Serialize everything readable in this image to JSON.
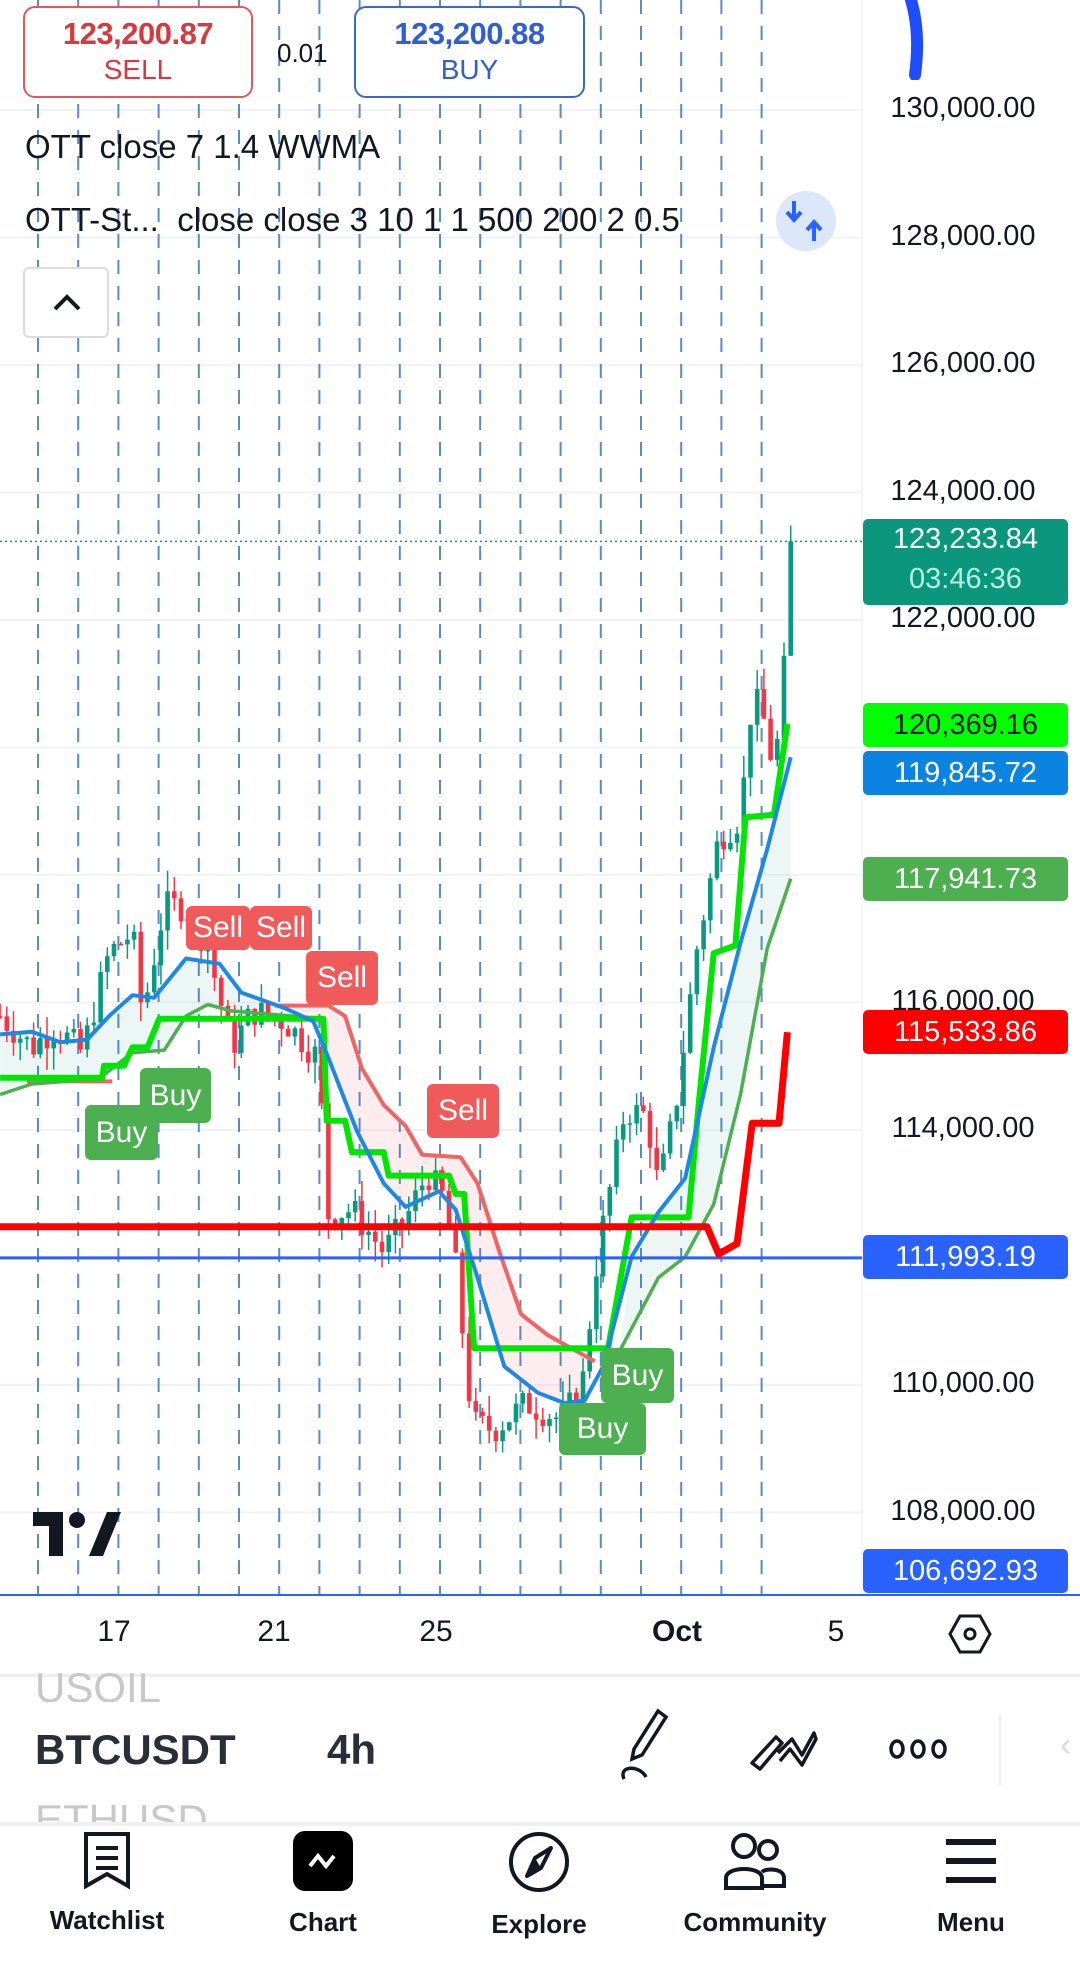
{
  "trade": {
    "sell_price": "123,200.87",
    "sell_label": "SELL",
    "spread": "0.01",
    "buy_price": "123,200.88",
    "buy_label": "BUY"
  },
  "legend": {
    "line1": "OTT close 7 1.4 WWMA",
    "line2_name": "OTT-St...",
    "line2_params": "close close 3 10 1 1 500 200 2 0.5"
  },
  "icons": {
    "collapse": "chevron-up-icon",
    "compare": "swap-arrows-icon",
    "settings": "hexagon-settings-icon"
  },
  "price_axis": [
    "130,000.00",
    "128,000.00",
    "126,000.00",
    "124,000.00",
    "122,000.00",
    "116,000.00",
    "114,000.00",
    "110,000.00",
    "108,000.00"
  ],
  "price_tags": [
    {
      "value": "123,233.84",
      "sub": "03:46:36",
      "bg": "#0a977d",
      "fg": "#ffffff"
    },
    {
      "value": "120,369.16",
      "bg": "#00ff00",
      "fg": "#131722"
    },
    {
      "value": "119,845.72",
      "bg": "#0a84e0",
      "fg": "#ffffff"
    },
    {
      "value": "117,941.73",
      "bg": "#4caf50",
      "fg": "#ffffff"
    },
    {
      "value": "115,533.86",
      "bg": "#ff0000",
      "fg": "#ffffff"
    },
    {
      "value": "111,993.19",
      "bg": "#2962ff",
      "fg": "#ffffff"
    },
    {
      "value": "106,692.93",
      "bg": "#2962ff",
      "fg": "#ffffff"
    }
  ],
  "date_axis": [
    "17",
    "21",
    "25",
    "Oct",
    "5"
  ],
  "signals": {
    "sell": "Sell",
    "buy": "Buy"
  },
  "toolbar": {
    "prev_symbol": "USOIL",
    "symbol": "BTCUSDT",
    "interval": "4h",
    "next_symbol": "ETHUSD"
  },
  "nav": [
    {
      "label": "Watchlist"
    },
    {
      "label": "Chart"
    },
    {
      "label": "Explore"
    },
    {
      "label": "Community"
    },
    {
      "label": "Menu"
    }
  ],
  "colors": {
    "up": "#089981",
    "down": "#f23645",
    "ott": "#00e600",
    "support": "#1e88e5",
    "ott_lower": "#4caf50",
    "trail": "#f06464",
    "stop": "#ff0000",
    "last_price_line": "#2962ff"
  },
  "chart_data": {
    "type": "candlestick",
    "ylim": [
      106000,
      131500
    ],
    "close_path": [
      [
        "09-14 04",
        115787
      ],
      [
        "09-14 23",
        115295
      ],
      [
        "09-15 13",
        115623
      ],
      [
        "09-16 05",
        115213
      ],
      [
        "09-16 21",
        116772
      ],
      [
        "09-17 11",
        117100
      ],
      [
        "09-17 17",
        115787
      ],
      [
        "09-18 06",
        117510
      ],
      [
        "09-18 19",
        117510
      ],
      [
        "09-19 08",
        116854
      ],
      [
        "09-19 22",
        115295
      ],
      [
        "09-20 11",
        115869
      ],
      [
        "09-21 06",
        115705
      ],
      [
        "09-22 02",
        115131
      ],
      [
        "09-22 08",
        112670
      ],
      [
        "09-22 22",
        112752
      ],
      [
        "09-23 17",
        112095
      ],
      [
        "09-24 06",
        112588
      ],
      [
        "09-24 19",
        113326
      ],
      [
        "09-25 05",
        112916
      ],
      [
        "09-25 12",
        111849
      ],
      [
        "09-25 22",
        109388
      ],
      [
        "09-26 11",
        109306
      ],
      [
        "09-27 06",
        109716
      ],
      [
        "09-28 02",
        109470
      ],
      [
        "09-28 15",
        109880
      ],
      [
        "09-29 01",
        112095
      ],
      [
        "09-29 17",
        114311
      ],
      [
        "09-30 06",
        114229
      ],
      [
        "09-30 13",
        113080
      ],
      [
        "09-30 23",
        114311
      ],
      [
        "10-01 12",
        116854
      ],
      [
        "10-02 01",
        118577
      ],
      [
        "10-02 14",
        118905
      ],
      [
        "10-02 21",
        120792
      ],
      [
        "10-03 03",
        120546
      ],
      [
        "10-03 10",
        119643
      ],
      [
        "10-03 15",
        120710
      ],
      [
        "10-03 20",
        123233.84
      ]
    ],
    "ott": [
      [
        "09-14 04",
        114819
      ],
      [
        "09-16 17",
        114819
      ],
      [
        "09-16 18",
        115008
      ],
      [
        "09-17 06",
        115008
      ],
      [
        "09-17 11",
        115295
      ],
      [
        "09-17 20",
        115295
      ],
      [
        "09-18 03",
        115746
      ],
      [
        "09-22 05",
        115746
      ],
      [
        "09-22 07",
        114146
      ],
      [
        "09-22 18",
        114146
      ],
      [
        "09-22 22",
        113654
      ],
      [
        "09-23 17",
        113654
      ],
      [
        "09-23 20",
        113285
      ],
      [
        "09-25 08",
        113285
      ],
      [
        "09-25 12",
        112998
      ],
      [
        "09-25 17",
        112998
      ],
      [
        "09-25 23",
        110578
      ],
      [
        "09-29 07",
        110578
      ],
      [
        "09-29 21",
        112629
      ],
      [
        "10-01 07",
        112629
      ],
      [
        "10-01 13",
        114393
      ],
      [
        "10-01 22",
        116772
      ],
      [
        "10-02 11",
        116895
      ],
      [
        "10-02 17",
        118905
      ],
      [
        "10-03 10",
        118946
      ],
      [
        "10-03 18",
        120369.16
      ]
    ],
    "support": [
      [
        "09-14 04",
        115500
      ],
      [
        "09-14 23",
        115541
      ],
      [
        "09-15 16",
        115377
      ],
      [
        "09-16 08",
        115418
      ],
      [
        "09-16 21",
        115787
      ],
      [
        "09-17 11",
        116115
      ],
      [
        "09-18 00",
        116074
      ],
      [
        "09-18 19",
        116690
      ],
      [
        "09-19 15",
        116608
      ],
      [
        "09-20 04",
        116156
      ],
      [
        "09-21 06",
        115910
      ],
      [
        "09-21 23",
        115705
      ],
      [
        "09-22 08",
        115131
      ],
      [
        "09-23 01",
        113982
      ],
      [
        "09-23 17",
        113162
      ],
      [
        "09-24 06",
        112793
      ],
      [
        "09-25 02",
        113039
      ],
      [
        "09-25 12",
        112752
      ],
      [
        "09-26 01",
        111685
      ],
      [
        "09-26 17",
        110291
      ],
      [
        "09-27 13",
        109880
      ],
      [
        "09-28 05",
        109716
      ],
      [
        "09-28 17",
        109757
      ],
      [
        "09-29 04",
        110291
      ],
      [
        "09-29 21",
        112013
      ],
      [
        "09-30 13",
        112711
      ],
      [
        "10-01 05",
        113244
      ],
      [
        "10-01 22",
        115295
      ],
      [
        "10-02 14",
        116936
      ],
      [
        "10-03 06",
        118412
      ],
      [
        "10-03 20",
        119845.72
      ]
    ],
    "ott_lower": [
      [
        [
          "09-14 04",
          114557
        ],
        [
          "09-14 23",
          114721
        ],
        [
          "09-16 15",
          114803
        ],
        [
          "09-17 11",
          115213
        ],
        [
          "09-18 06",
          115254
        ],
        [
          "09-18 19",
          115787
        ],
        [
          "09-19 08",
          115968
        ],
        [
          "09-19 22",
          115869
        ],
        [
          "09-22 05",
          115746
        ]
      ],
      [
        [
          "09-29 14",
          110537
        ],
        [
          "09-30 13",
          111685
        ],
        [
          "10-01 05",
          112013
        ],
        [
          "10-01 22",
          112834
        ],
        [
          "10-02 14",
          114557
        ],
        [
          "10-03 06",
          116854
        ],
        [
          "10-03 20",
          117941.73
        ]
      ]
    ],
    "trail": [
      [
        [
          "09-14 20",
          114762
        ],
        [
          "09-16 23",
          114762
        ]
      ],
      [
        [
          "09-21 00",
          115951
        ],
        [
          "09-22 08",
          115951
        ],
        [
          "09-22 18",
          115787
        ],
        [
          "09-23 04",
          114967
        ],
        [
          "09-23 17",
          114393
        ],
        [
          "09-24 06",
          114064
        ],
        [
          "09-24 16",
          113613
        ],
        [
          "09-25 15",
          113572
        ],
        [
          "09-26 01",
          113162
        ],
        [
          "09-26 14",
          112095
        ],
        [
          "09-27 03",
          111111
        ],
        [
          "09-27 19",
          110783
        ],
        [
          "09-28 23",
          110373
        ]
      ]
    ],
    "stop": [
      [
        "09-13 00",
        112481
      ],
      [
        "10-01 18",
        112481
      ],
      [
        "10-02 01",
        112054
      ],
      [
        "10-02 12",
        112218
      ],
      [
        "10-02 21",
        114105
      ],
      [
        "10-03 13",
        114105
      ],
      [
        "10-03 18",
        115533.86
      ]
    ],
    "last_price_line": 111993.19,
    "signals": [
      {
        "type": "Sell",
        "time": "09-18 19",
        "price": 116450
      },
      {
        "type": "Sell",
        "time": "09-19 22",
        "price": 116450
      },
      {
        "type": "Sell",
        "time": "09-20 21",
        "price": 115900
      },
      {
        "type": "Sell",
        "time": "09-24 19",
        "price": 113880
      },
      {
        "type": "Buy",
        "time": "09-16 08",
        "price": 114100
      },
      {
        "type": "Buy",
        "time": "09-17 11",
        "price": 114700
      },
      {
        "type": "Buy",
        "time": "09-29 04",
        "price": 110400
      },
      {
        "type": "Buy",
        "time": "09-28 15",
        "price": 109500
      }
    ]
  }
}
